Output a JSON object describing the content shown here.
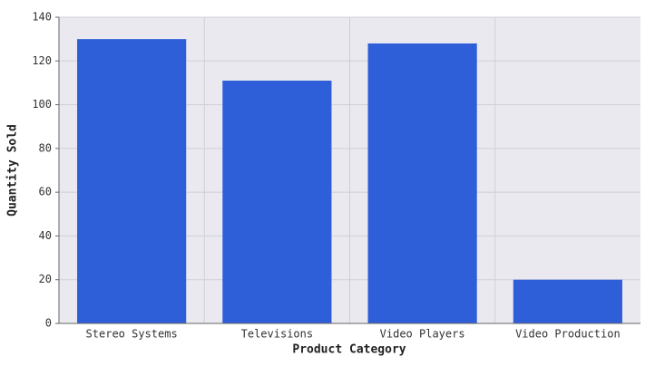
{
  "chart_data": {
    "type": "bar",
    "x_label": "Product Category",
    "y_label": "Quantity Sold",
    "categories": [
      "Stereo Systems",
      "Televisions",
      "Video Players",
      "Video Production"
    ],
    "values": [
      130,
      111,
      128,
      20
    ],
    "color": "#2f5fd8",
    "ylim": [
      0,
      140
    ],
    "yticks": [
      0,
      20,
      40,
      60,
      80,
      100,
      120,
      140
    ],
    "grid": true
  }
}
